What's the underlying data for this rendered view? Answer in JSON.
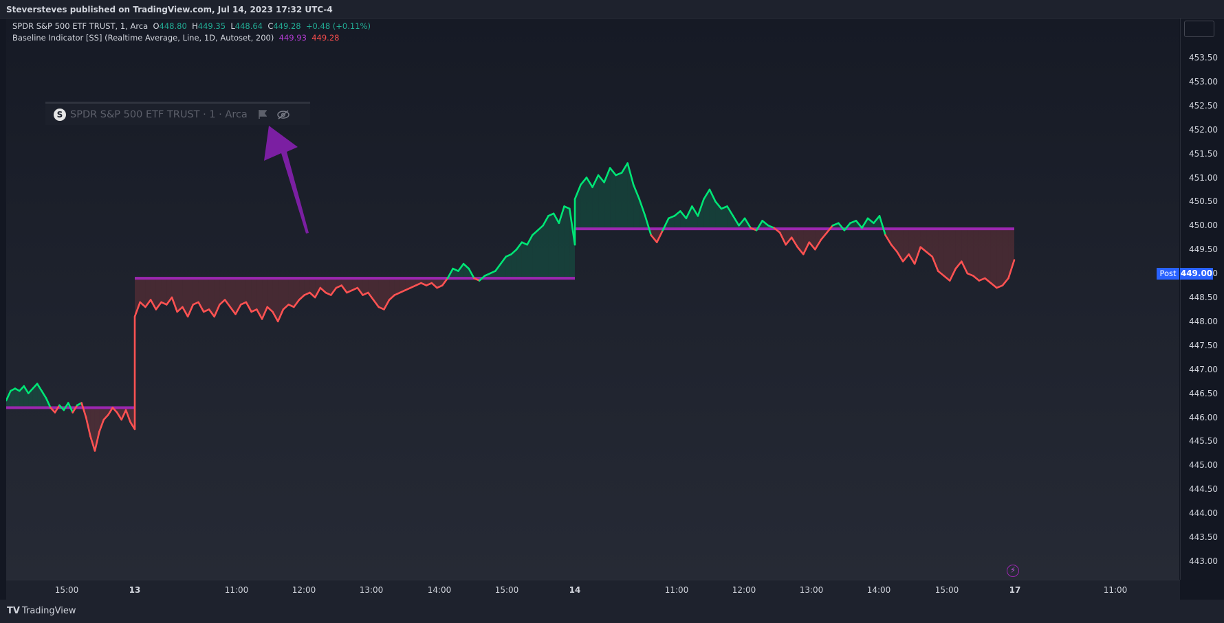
{
  "header": {
    "publish_line": "Steversteves published on TradingView.com, Jul 14, 2023 17:32 UTC-4"
  },
  "legend": {
    "symbol": "SPDR S&P 500 ETF TRUST, 1, Arca",
    "o_label": "O",
    "o_value": "448.80",
    "h_label": "H",
    "h_value": "449.35",
    "l_label": "L",
    "l_value": "448.64",
    "c_label": "C",
    "c_value": "449.28",
    "change": "+0.48 (+0.11%)",
    "indicator": "Baseline Indicator [SS] (Realtime Average, Line, 1D, Autoset, 200)",
    "indicator_val1": "449.93",
    "indicator_val2": "449.28"
  },
  "watermark": {
    "logo_letter": "S",
    "text": "SPDR S&P 500 ETF TRUST · 1 · Arca",
    "icons": [
      "flag-icon",
      "eye-hidden-icon"
    ]
  },
  "price_axis": {
    "labels": [
      "453.50",
      "453.00",
      "452.50",
      "452.00",
      "451.50",
      "451.00",
      "450.50",
      "450.00",
      "449.50",
      "449.00",
      "448.50",
      "448.00",
      "447.50",
      "447.00",
      "446.50",
      "446.00",
      "445.50",
      "445.00",
      "444.50",
      "444.00",
      "443.50",
      "443.00"
    ],
    "post_label": "Post",
    "current_price": "449.00"
  },
  "time_axis": {
    "labels": [
      {
        "text": "15:00",
        "bold": false
      },
      {
        "text": "13",
        "bold": true
      },
      {
        "text": "11:00",
        "bold": false
      },
      {
        "text": "12:00",
        "bold": false
      },
      {
        "text": "13:00",
        "bold": false
      },
      {
        "text": "14:00",
        "bold": false
      },
      {
        "text": "15:00",
        "bold": false
      },
      {
        "text": "14",
        "bold": true
      },
      {
        "text": "11:00",
        "bold": false
      },
      {
        "text": "12:00",
        "bold": false
      },
      {
        "text": "13:00",
        "bold": false
      },
      {
        "text": "14:00",
        "bold": false
      },
      {
        "text": "15:00",
        "bold": false
      },
      {
        "text": "17",
        "bold": true
      },
      {
        "text": "11:00",
        "bold": false
      }
    ]
  },
  "footer": {
    "brand": "TradingView"
  },
  "colors": {
    "up": "#00e676",
    "down": "#ff5252",
    "baseline": "#9c27b0",
    "accent": "#2962ff"
  },
  "chart_data": {
    "type": "line",
    "ylim": [
      442.7,
      453.9
    ],
    "baselines": [
      {
        "day": "Jul 12",
        "value": 446.2
      },
      {
        "day": "Jul 13",
        "value": 448.9
      },
      {
        "day": "Jul 14",
        "value": 449.93
      }
    ],
    "series": [
      {
        "day": "Jul 12",
        "values": [
          446.35,
          446.55,
          446.6,
          446.55,
          446.65,
          446.5,
          446.6,
          446.7,
          446.55,
          446.4,
          446.2,
          446.1,
          446.25,
          446.15,
          446.3,
          446.1,
          446.25,
          446.3,
          446.0,
          445.6,
          445.3,
          445.7,
          445.95,
          446.05,
          446.2,
          446.1,
          445.95,
          446.15,
          445.9,
          445.75
        ]
      },
      {
        "day": "Jul 13",
        "values": [
          448.1,
          448.4,
          448.3,
          448.45,
          448.25,
          448.4,
          448.35,
          448.5,
          448.2,
          448.3,
          448.1,
          448.35,
          448.4,
          448.2,
          448.25,
          448.1,
          448.35,
          448.45,
          448.3,
          448.15,
          448.35,
          448.4,
          448.2,
          448.25,
          448.05,
          448.3,
          448.2,
          448.0,
          448.25,
          448.35,
          448.3,
          448.45,
          448.55,
          448.6,
          448.5,
          448.7,
          448.6,
          448.55,
          448.7,
          448.75,
          448.6,
          448.65,
          448.7,
          448.55,
          448.6,
          448.45,
          448.3,
          448.25,
          448.45,
          448.55,
          448.6,
          448.65,
          448.7,
          448.75,
          448.8,
          448.75,
          448.8,
          448.7,
          448.75,
          448.9,
          449.1,
          449.05,
          449.2,
          449.1,
          448.9,
          448.85,
          448.95,
          449.0,
          449.05,
          449.2,
          449.35,
          449.4,
          449.5,
          449.65,
          449.6,
          449.8,
          449.9,
          450.0,
          450.2,
          450.25,
          450.05,
          450.4,
          450.35,
          449.6
        ]
      },
      {
        "day": "Jul 14",
        "values": [
          450.55,
          450.85,
          451.0,
          450.8,
          451.05,
          450.9,
          451.2,
          451.05,
          451.1,
          451.3,
          450.85,
          450.55,
          450.2,
          449.8,
          449.65,
          449.9,
          450.15,
          450.2,
          450.3,
          450.15,
          450.4,
          450.2,
          450.55,
          450.75,
          450.5,
          450.35,
          450.4,
          450.2,
          450.0,
          450.15,
          449.95,
          449.9,
          450.1,
          450.0,
          449.95,
          449.85,
          449.6,
          449.75,
          449.55,
          449.4,
          449.65,
          449.5,
          449.7,
          449.85,
          450.0,
          450.05,
          449.9,
          450.05,
          450.1,
          449.95,
          450.15,
          450.05,
          450.2,
          449.8,
          449.6,
          449.45,
          449.25,
          449.4,
          449.2,
          449.55,
          449.45,
          449.35,
          449.05,
          448.95,
          448.85,
          449.1,
          449.25,
          449.0,
          448.95,
          448.85,
          448.9,
          448.8,
          448.7,
          448.75,
          448.9,
          449.28
        ]
      }
    ]
  }
}
